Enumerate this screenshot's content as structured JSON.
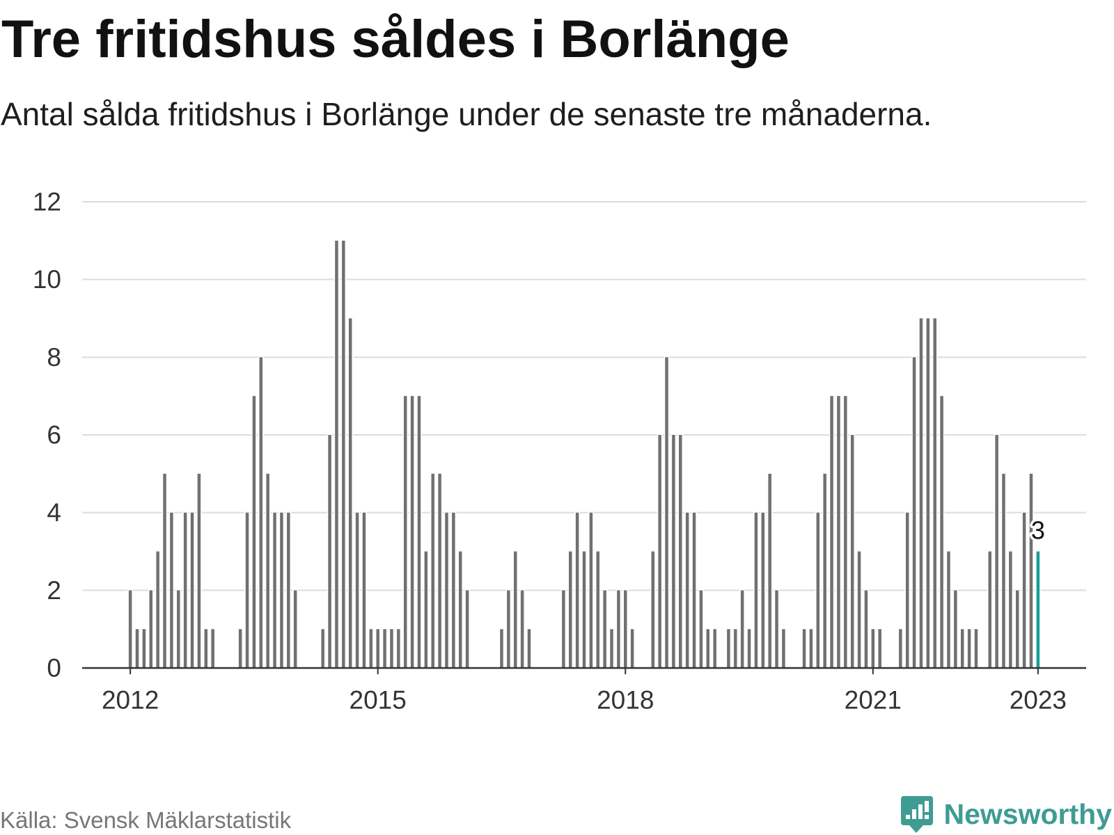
{
  "chart_data": {
    "type": "bar",
    "title": "Tre fritidshus såldes i Borlänge",
    "subtitle": "Antal sålda fritidshus i Borlänge under de senaste tre månaderna.",
    "x": [
      "2012-01",
      "2012-02",
      "2012-03",
      "2012-04",
      "2012-05",
      "2012-06",
      "2012-07",
      "2012-08",
      "2012-09",
      "2012-10",
      "2012-11",
      "2012-12",
      "2013-01",
      "2013-02",
      "2013-03",
      "2013-04",
      "2013-05",
      "2013-06",
      "2013-07",
      "2013-08",
      "2013-09",
      "2013-10",
      "2013-11",
      "2013-12",
      "2014-01",
      "2014-02",
      "2014-03",
      "2014-04",
      "2014-05",
      "2014-06",
      "2014-07",
      "2014-08",
      "2014-09",
      "2014-10",
      "2014-11",
      "2014-12",
      "2015-01",
      "2015-02",
      "2015-03",
      "2015-04",
      "2015-05",
      "2015-06",
      "2015-07",
      "2015-08",
      "2015-09",
      "2015-10",
      "2015-11",
      "2015-12",
      "2016-01",
      "2016-02",
      "2016-03",
      "2016-04",
      "2016-05",
      "2016-06",
      "2016-07",
      "2016-08",
      "2016-09",
      "2016-10",
      "2016-11",
      "2016-12",
      "2017-01",
      "2017-02",
      "2017-03",
      "2017-04",
      "2017-05",
      "2017-06",
      "2017-07",
      "2017-08",
      "2017-09",
      "2017-10",
      "2017-11",
      "2017-12",
      "2018-01",
      "2018-02",
      "2018-03",
      "2018-04",
      "2018-05",
      "2018-06",
      "2018-07",
      "2018-08",
      "2018-09",
      "2018-10",
      "2018-11",
      "2018-12",
      "2019-01",
      "2019-02",
      "2019-03",
      "2019-04",
      "2019-05",
      "2019-06",
      "2019-07",
      "2019-08",
      "2019-09",
      "2019-10",
      "2019-11",
      "2019-12",
      "2020-01",
      "2020-02",
      "2020-03",
      "2020-04",
      "2020-05",
      "2020-06",
      "2020-07",
      "2020-08",
      "2020-09",
      "2020-10",
      "2020-11",
      "2020-12",
      "2021-01",
      "2021-02",
      "2021-03",
      "2021-04",
      "2021-05",
      "2021-06",
      "2021-07",
      "2021-08",
      "2021-09",
      "2021-10",
      "2021-11",
      "2021-12",
      "2022-01",
      "2022-02",
      "2022-03",
      "2022-04",
      "2022-05",
      "2022-06",
      "2022-07",
      "2022-08",
      "2022-09",
      "2022-10",
      "2022-11",
      "2022-12",
      "2023-01"
    ],
    "values": [
      2,
      1,
      1,
      2,
      3,
      5,
      4,
      2,
      4,
      4,
      5,
      1,
      1,
      0,
      0,
      0,
      1,
      4,
      7,
      8,
      5,
      4,
      4,
      4,
      2,
      0,
      0,
      0,
      1,
      6,
      11,
      11,
      9,
      4,
      4,
      1,
      1,
      1,
      1,
      1,
      7,
      7,
      7,
      3,
      5,
      5,
      4,
      4,
      3,
      2,
      0,
      0,
      0,
      0,
      1,
      2,
      3,
      2,
      1,
      0,
      0,
      0,
      0,
      2,
      3,
      4,
      3,
      4,
      3,
      2,
      1,
      2,
      2,
      1,
      0,
      0,
      3,
      6,
      8,
      6,
      6,
      4,
      4,
      2,
      1,
      1,
      0,
      1,
      1,
      2,
      1,
      4,
      4,
      5,
      2,
      1,
      0,
      0,
      1,
      1,
      4,
      5,
      7,
      7,
      7,
      6,
      3,
      2,
      1,
      1,
      0,
      0,
      1,
      4,
      8,
      9,
      9,
      9,
      7,
      3,
      2,
      1,
      1,
      1,
      0,
      3,
      6,
      5,
      3,
      2,
      4,
      5,
      3
    ],
    "xticks": [
      "2012",
      "2015",
      "2018",
      "2021",
      "2023"
    ],
    "yticks": [
      0,
      2,
      4,
      6,
      8,
      10,
      12
    ],
    "xlim": [
      "2011-06",
      "2023-08"
    ],
    "ylim": [
      0,
      12
    ],
    "grid": true,
    "highlight": {
      "x": "2023-01",
      "label": "3"
    }
  },
  "footer": {
    "source": "Källa: Svensk Mäklarstatistik",
    "brand": "Newsworthy",
    "brand_icon": "newsworthy-logo-icon"
  },
  "colors": {
    "bar": "#707070",
    "highlight": "#169e95",
    "brand": "#3f9c93"
  }
}
